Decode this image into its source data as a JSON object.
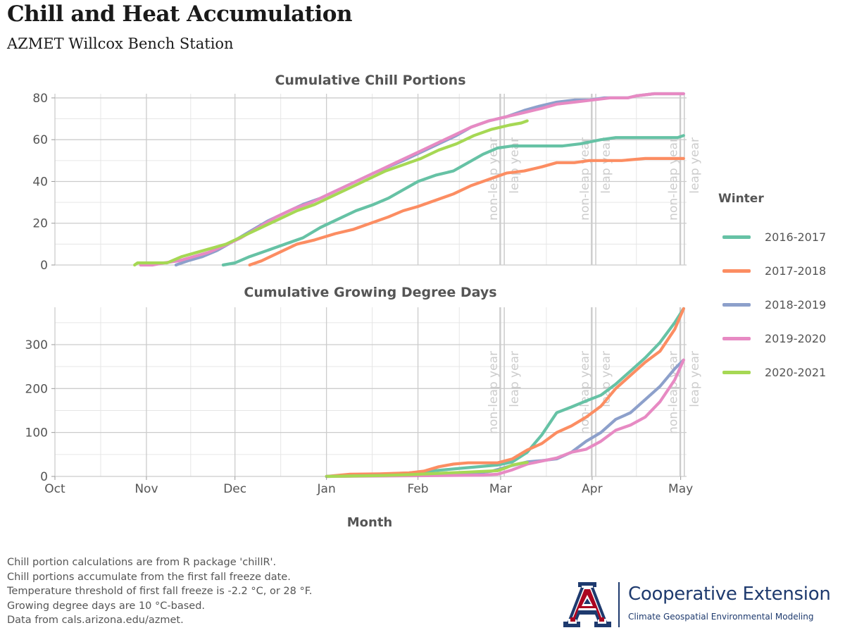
{
  "header": {
    "title": "Chill and Heat Accumulation",
    "subtitle": "AZMET Willcox Bench Station"
  },
  "axes": {
    "xlabel": "Month",
    "month_ticks": [
      {
        "label": "Oct",
        "day": 0
      },
      {
        "label": "Nov",
        "day": 31
      },
      {
        "label": "Dec",
        "day": 61
      },
      {
        "label": "Jan",
        "day": 92
      },
      {
        "label": "Feb",
        "day": 123
      },
      {
        "label": "Mar",
        "day": 151
      },
      {
        "label": "Apr",
        "day": 182
      },
      {
        "label": "May",
        "day": 212
      }
    ],
    "refs": [
      {
        "label": "non-leap year",
        "day": 151
      },
      {
        "label": "leap year",
        "day": 152
      },
      {
        "label": "non-leap year",
        "day": 182
      },
      {
        "label": "leap year",
        "day": 183
      },
      {
        "label": "non-leap year",
        "day": 212
      },
      {
        "label": "leap year",
        "day": 213
      }
    ]
  },
  "legend": {
    "title": "Winter",
    "items": [
      {
        "label": "2016-2017",
        "color": "#66c2a5"
      },
      {
        "label": "2017-2018",
        "color": "#fc8d62"
      },
      {
        "label": "2018-2019",
        "color": "#8da0cb"
      },
      {
        "label": "2019-2020",
        "color": "#e78ac3"
      },
      {
        "label": "2020-2021",
        "color": "#a6d854"
      }
    ]
  },
  "notes": [
    "Chill portion calculations are from R package 'chillR'.",
    "Chill portions accumulate from the first fall freeze date.",
    "Temperature threshold of first fall freeze is -2.2 °C, or 28 °F.",
    "Growing degree days are 10 °C-based.",
    "Data from cals.arizona.edu/azmet."
  ],
  "logo": {
    "line1": "Cooperative Extension",
    "line2": "Climate Geospatial Environmental Modeling",
    "colors": {
      "primary": "#1e3a6e",
      "accent": "#ab0520"
    }
  },
  "chart_data": [
    {
      "type": "line",
      "title": "Cumulative Chill Portions",
      "xlabel": "Month",
      "ylabel": "",
      "x_unit": "days since Oct 1",
      "xlim": [
        0,
        214
      ],
      "ylim": [
        0,
        82
      ],
      "yticks": [
        0,
        20,
        40,
        60,
        80
      ],
      "series": [
        {
          "name": "2016-2017",
          "color": "#66c2a5",
          "points": [
            [
              57,
              0
            ],
            [
              61,
              1
            ],
            [
              66,
              4
            ],
            [
              72,
              7
            ],
            [
              78,
              10
            ],
            [
              84,
              13
            ],
            [
              90,
              18
            ],
            [
              96,
              22
            ],
            [
              102,
              26
            ],
            [
              108,
              29
            ],
            [
              113,
              32
            ],
            [
              118,
              36
            ],
            [
              123,
              40
            ],
            [
              129,
              43
            ],
            [
              135,
              45
            ],
            [
              140,
              49
            ],
            [
              145,
              53
            ],
            [
              150,
              56
            ],
            [
              155,
              57
            ],
            [
              165,
              57
            ],
            [
              172,
              57
            ],
            [
              178,
              58
            ],
            [
              185,
              60
            ],
            [
              190,
              61
            ],
            [
              200,
              61
            ],
            [
              211,
              61
            ],
            [
              213,
              62
            ]
          ]
        },
        {
          "name": "2017-2018",
          "color": "#fc8d62",
          "points": [
            [
              66,
              0
            ],
            [
              70,
              2
            ],
            [
              76,
              6
            ],
            [
              82,
              10
            ],
            [
              88,
              12
            ],
            [
              95,
              15
            ],
            [
              101,
              17
            ],
            [
              107,
              20
            ],
            [
              113,
              23
            ],
            [
              118,
              26
            ],
            [
              123,
              28
            ],
            [
              129,
              31
            ],
            [
              135,
              34
            ],
            [
              141,
              38
            ],
            [
              147,
              41
            ],
            [
              153,
              44
            ],
            [
              159,
              45
            ],
            [
              165,
              47
            ],
            [
              170,
              49
            ],
            [
              176,
              49
            ],
            [
              181,
              50
            ],
            [
              192,
              50
            ],
            [
              200,
              51
            ],
            [
              213,
              51
            ]
          ]
        },
        {
          "name": "2018-2019",
          "color": "#8da0cb",
          "points": [
            [
              41,
              0
            ],
            [
              45,
              2
            ],
            [
              50,
              4
            ],
            [
              55,
              7
            ],
            [
              60,
              11
            ],
            [
              66,
              16
            ],
            [
              72,
              21
            ],
            [
              78,
              25
            ],
            [
              84,
              29
            ],
            [
              90,
              32
            ],
            [
              96,
              36
            ],
            [
              102,
              40
            ],
            [
              108,
              44
            ],
            [
              113,
              47
            ],
            [
              118,
              50
            ],
            [
              124,
              54
            ],
            [
              130,
              58
            ],
            [
              136,
              62
            ],
            [
              141,
              66
            ],
            [
              147,
              69
            ],
            [
              153,
              71
            ],
            [
              159,
              74
            ],
            [
              164,
              76
            ],
            [
              170,
              78
            ],
            [
              176,
              79
            ],
            [
              181,
              79
            ],
            [
              186,
              80
            ],
            [
              194,
              80
            ],
            [
              197,
              81
            ],
            [
              203,
              82
            ],
            [
              213,
              82
            ]
          ]
        },
        {
          "name": "2019-2020",
          "color": "#e78ac3",
          "points": [
            [
              29,
              0
            ],
            [
              33,
              0
            ],
            [
              37,
              1
            ],
            [
              42,
              2
            ],
            [
              47,
              4
            ],
            [
              52,
              6
            ],
            [
              57,
              9
            ],
            [
              63,
              13
            ],
            [
              69,
              18
            ],
            [
              75,
              23
            ],
            [
              81,
              27
            ],
            [
              87,
              30
            ],
            [
              93,
              34
            ],
            [
              99,
              38
            ],
            [
              105,
              42
            ],
            [
              111,
              46
            ],
            [
              117,
              50
            ],
            [
              123,
              54
            ],
            [
              129,
              58
            ],
            [
              135,
              62
            ],
            [
              141,
              66
            ],
            [
              147,
              69
            ],
            [
              153,
              71
            ],
            [
              159,
              73
            ],
            [
              165,
              75
            ],
            [
              170,
              77
            ],
            [
              176,
              78
            ],
            [
              182,
              79
            ],
            [
              188,
              80
            ],
            [
              194,
              80
            ],
            [
              197,
              81
            ],
            [
              203,
              82
            ],
            [
              213,
              82
            ]
          ]
        },
        {
          "name": "2020-2021",
          "color": "#a6d854",
          "points": [
            [
              27,
              0
            ],
            [
              28,
              1
            ],
            [
              33,
              1
            ],
            [
              38,
              1
            ],
            [
              43,
              4
            ],
            [
              48,
              6
            ],
            [
              53,
              8
            ],
            [
              58,
              10
            ],
            [
              64,
              14
            ],
            [
              70,
              18
            ],
            [
              76,
              22
            ],
            [
              82,
              26
            ],
            [
              88,
              29
            ],
            [
              94,
              33
            ],
            [
              100,
              37
            ],
            [
              106,
              41
            ],
            [
              112,
              45
            ],
            [
              118,
              48
            ],
            [
              124,
              51
            ],
            [
              130,
              55
            ],
            [
              136,
              58
            ],
            [
              142,
              62
            ],
            [
              148,
              65
            ],
            [
              154,
              67
            ],
            [
              158,
              68
            ],
            [
              160,
              69
            ]
          ]
        }
      ]
    },
    {
      "type": "line",
      "title": "Cumulative Growing Degree Days",
      "xlabel": "Month",
      "ylabel": "",
      "x_unit": "days since Oct 1",
      "xlim": [
        0,
        214
      ],
      "ylim": [
        0,
        385
      ],
      "yticks": [
        0,
        100,
        200,
        300
      ],
      "series": [
        {
          "name": "2016-2017",
          "color": "#66c2a5",
          "points": [
            [
              92,
              0
            ],
            [
              100,
              3
            ],
            [
              110,
              5
            ],
            [
              120,
              8
            ],
            [
              130,
              14
            ],
            [
              140,
              20
            ],
            [
              150,
              26
            ],
            [
              155,
              33
            ],
            [
              160,
              55
            ],
            [
              165,
              95
            ],
            [
              170,
              145
            ],
            [
              175,
              158
            ],
            [
              180,
              172
            ],
            [
              185,
              185
            ],
            [
              190,
              210
            ],
            [
              195,
              240
            ],
            [
              200,
              270
            ],
            [
              205,
              305
            ],
            [
              210,
              350
            ],
            [
              213,
              382
            ]
          ]
        },
        {
          "name": "2017-2018",
          "color": "#fc8d62",
          "points": [
            [
              92,
              0
            ],
            [
              100,
              5
            ],
            [
              110,
              6
            ],
            [
              120,
              8
            ],
            [
              125,
              12
            ],
            [
              130,
              22
            ],
            [
              135,
              28
            ],
            [
              140,
              31
            ],
            [
              150,
              31
            ],
            [
              155,
              40
            ],
            [
              160,
              60
            ],
            [
              165,
              75
            ],
            [
              170,
              100
            ],
            [
              175,
              115
            ],
            [
              180,
              135
            ],
            [
              185,
              160
            ],
            [
              190,
              200
            ],
            [
              195,
              230
            ],
            [
              200,
              260
            ],
            [
              205,
              285
            ],
            [
              210,
              335
            ],
            [
              213,
              382
            ]
          ]
        },
        {
          "name": "2018-2019",
          "color": "#8da0cb",
          "points": [
            [
              92,
              0
            ],
            [
              120,
              3
            ],
            [
              140,
              5
            ],
            [
              148,
              12
            ],
            [
              155,
              25
            ],
            [
              160,
              33
            ],
            [
              165,
              36
            ],
            [
              170,
              40
            ],
            [
              175,
              55
            ],
            [
              180,
              80
            ],
            [
              185,
              100
            ],
            [
              190,
              130
            ],
            [
              195,
              145
            ],
            [
              200,
              175
            ],
            [
              205,
              205
            ],
            [
              210,
              245
            ],
            [
              213,
              265
            ]
          ]
        },
        {
          "name": "2019-2020",
          "color": "#e78ac3",
          "points": [
            [
              92,
              0
            ],
            [
              130,
              2
            ],
            [
              145,
              3
            ],
            [
              150,
              5
            ],
            [
              155,
              15
            ],
            [
              160,
              28
            ],
            [
              165,
              35
            ],
            [
              170,
              42
            ],
            [
              175,
              55
            ],
            [
              180,
              62
            ],
            [
              185,
              80
            ],
            [
              190,
              105
            ],
            [
              195,
              117
            ],
            [
              200,
              135
            ],
            [
              205,
              170
            ],
            [
              210,
              220
            ],
            [
              213,
              265
            ]
          ]
        },
        {
          "name": "2020-2021",
          "color": "#a6d854",
          "points": [
            [
              92,
              0
            ],
            [
              110,
              2
            ],
            [
              120,
              4
            ],
            [
              130,
              7
            ],
            [
              140,
              10
            ],
            [
              150,
              13
            ],
            [
              153,
              20
            ],
            [
              155,
              26
            ],
            [
              158,
              30
            ],
            [
              160,
              32
            ]
          ]
        }
      ]
    }
  ]
}
